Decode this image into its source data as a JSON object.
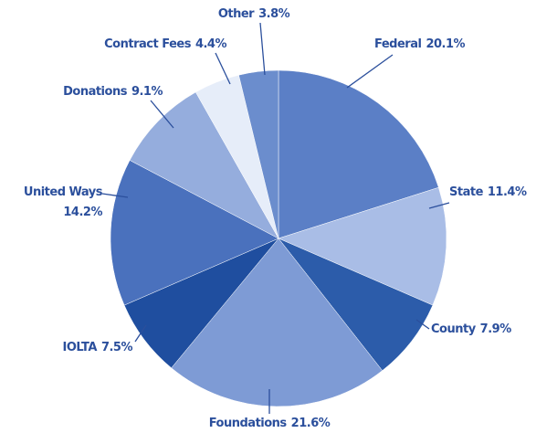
{
  "chart_data": {
    "type": "pie",
    "categories": [
      "Federal",
      "State",
      "County",
      "Foundations",
      "IOLTA",
      "United Ways",
      "Donations",
      "Contract Fees",
      "Other"
    ],
    "values": [
      20.1,
      11.4,
      7.9,
      21.6,
      7.5,
      14.2,
      9.1,
      4.4,
      3.8
    ],
    "value_labels": [
      "20.1%",
      "11.4%",
      "7.9%",
      "21.6%",
      "7.5%",
      "14.2%",
      "9.1%",
      "4.4%",
      "3.8%"
    ],
    "colors": [
      "#5b7fc6",
      "#a9bde6",
      "#2c5caa",
      "#7e9bd5",
      "#1f4e9f",
      "#4a71bd",
      "#95addd",
      "#e6edf9",
      "#6b8dcd"
    ]
  }
}
